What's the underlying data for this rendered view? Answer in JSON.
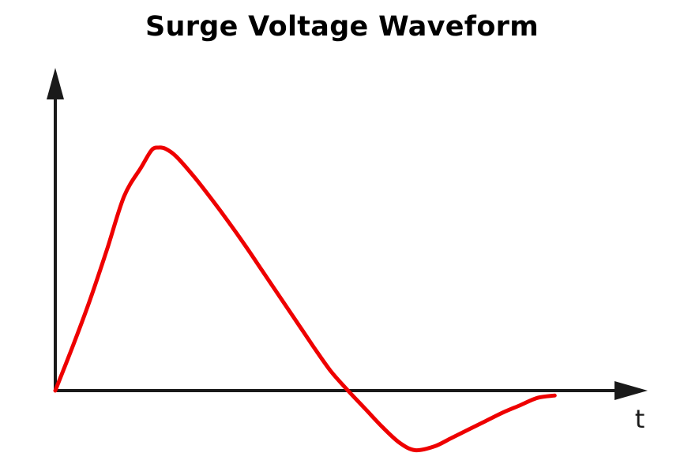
{
  "chart_data": {
    "type": "line",
    "title": "Surge Voltage Waveform",
    "xlabel": "t",
    "ylabel": "",
    "grid": false,
    "axis_ticks": false,
    "series": [
      {
        "color": "#ee0000",
        "x": [
          0,
          5,
          10,
          15,
          20,
          25,
          28,
          30,
          32,
          35,
          40,
          45,
          50,
          55,
          60,
          65,
          70,
          75,
          80,
          85,
          90,
          95,
          100,
          104.5,
          110,
          115,
          120,
          125,
          130,
          135,
          140,
          145
        ],
        "y": [
          0,
          0.18,
          0.37,
          0.58,
          0.8,
          0.92,
          0.99,
          1.0,
          0.995,
          0.965,
          0.885,
          0.795,
          0.7,
          0.6,
          0.495,
          0.39,
          0.285,
          0.18,
          0.08,
          0.0,
          -0.075,
          -0.15,
          -0.215,
          -0.245,
          -0.23,
          -0.195,
          -0.16,
          -0.125,
          -0.09,
          -0.06,
          -0.03,
          -0.02
        ]
      }
    ],
    "xlim": [
      0,
      172
    ],
    "ylim": [
      -0.25,
      1.52
    ],
    "colors": {
      "axis": "#1a1a1a",
      "curve": "#ee0000"
    }
  }
}
